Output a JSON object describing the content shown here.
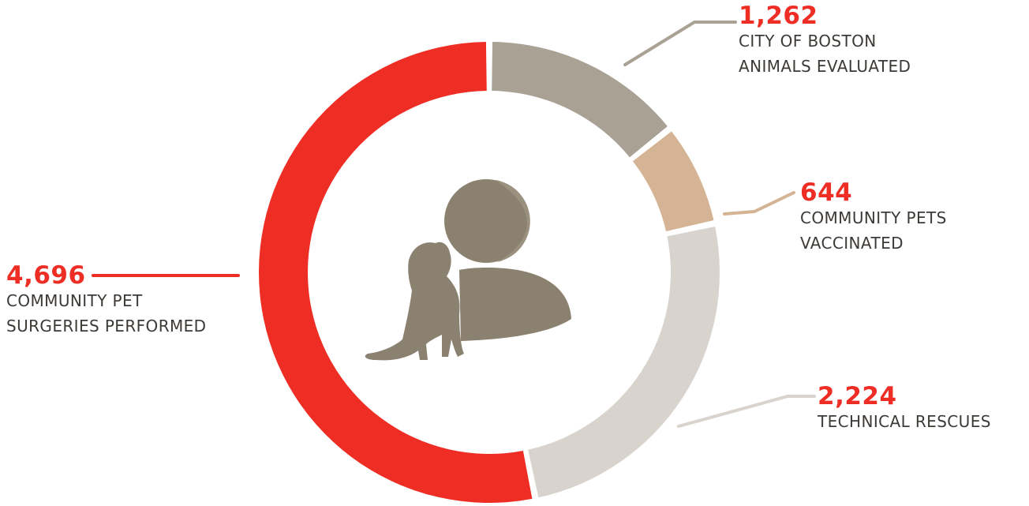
{
  "chart_data": {
    "type": "pie",
    "style": "donut",
    "slices": [
      {
        "value": 1262,
        "value_label": "1,262",
        "label_lines": [
          "CITY OF BOSTON",
          "ANIMALS EVALUATED"
        ],
        "color": "#a8a194"
      },
      {
        "value": 644,
        "value_label": "644",
        "label_lines": [
          "COMMUNITY PETS",
          "VACCINATED"
        ],
        "color": "#d4b494"
      },
      {
        "value": 2224,
        "value_label": "2,224",
        "label_lines": [
          "TECHNICAL RESCUES"
        ],
        "color": "#d8d4cd"
      },
      {
        "value": 4696,
        "value_label": "4,696",
        "label_lines": [
          "COMMUNITY PET",
          "SURGERIES PERFORMED"
        ],
        "color": "#ee2e24"
      }
    ],
    "value_color": "#ee2e24",
    "center_icon": "person-with-dog-icon",
    "icon_color": "#8b8170"
  }
}
